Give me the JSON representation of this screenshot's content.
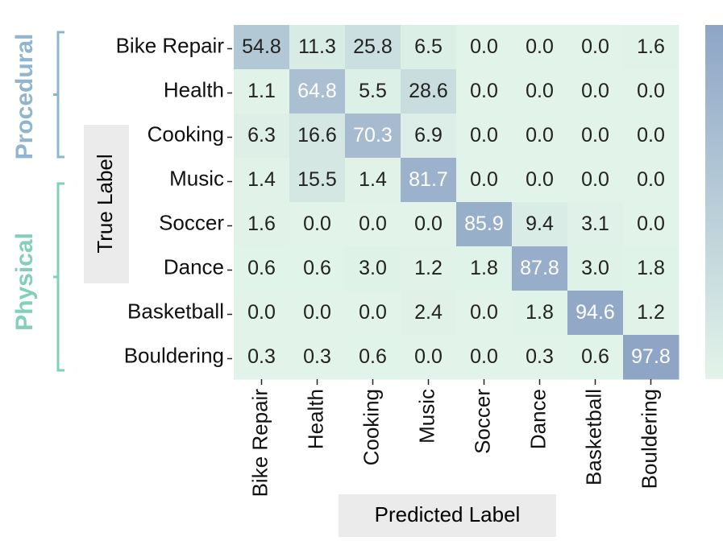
{
  "chart_data": {
    "type": "heatmap",
    "x_categories": [
      "Bike Repair",
      "Health",
      "Cooking",
      "Music",
      "Soccer",
      "Dance",
      "Basketball",
      "Bouldering"
    ],
    "y_categories": [
      "Bike Repair",
      "Health",
      "Cooking",
      "Music",
      "Soccer",
      "Dance",
      "Basketball",
      "Bouldering"
    ],
    "values": [
      [
        54.8,
        11.3,
        25.8,
        6.5,
        0.0,
        0.0,
        0.0,
        1.6
      ],
      [
        1.1,
        64.8,
        5.5,
        28.6,
        0.0,
        0.0,
        0.0,
        0.0
      ],
      [
        6.3,
        16.6,
        70.3,
        6.9,
        0.0,
        0.0,
        0.0,
        0.0
      ],
      [
        1.4,
        15.5,
        1.4,
        81.7,
        0.0,
        0.0,
        0.0,
        0.0
      ],
      [
        1.6,
        0.0,
        0.0,
        0.0,
        85.9,
        9.4,
        3.1,
        0.0
      ],
      [
        0.6,
        0.6,
        3.0,
        1.2,
        1.8,
        87.8,
        3.0,
        1.8
      ],
      [
        0.0,
        0.0,
        0.0,
        2.4,
        0.0,
        1.8,
        94.6,
        1.2
      ],
      [
        0.3,
        0.3,
        0.6,
        0.0,
        0.0,
        0.3,
        0.6,
        97.8
      ]
    ],
    "value_labels": [
      [
        "54.8",
        "11.3",
        "25.8",
        "6.5",
        "0.0",
        "0.0",
        "0.0",
        "1.6"
      ],
      [
        "1.1",
        "64.8",
        "5.5",
        "28.6",
        "0.0",
        "0.0",
        "0.0",
        "0.0"
      ],
      [
        "6.3",
        "16.6",
        "70.3",
        "6.9",
        "0.0",
        "0.0",
        "0.0",
        "0.0"
      ],
      [
        "1.4",
        "15.5",
        "1.4",
        "81.7",
        "0.0",
        "0.0",
        "0.0",
        "0.0"
      ],
      [
        "1.6",
        "0.0",
        "0.0",
        "0.0",
        "85.9",
        "9.4",
        "3.1",
        "0.0"
      ],
      [
        "0.6",
        "0.6",
        "3.0",
        "1.2",
        "1.8",
        "87.8",
        "3.0",
        "1.8"
      ],
      [
        "0.0",
        "0.0",
        "0.0",
        "2.4",
        "0.0",
        "1.8",
        "94.6",
        "1.2"
      ],
      [
        "0.3",
        "0.3",
        "0.6",
        "0.0",
        "0.0",
        "0.3",
        "0.6",
        "97.8"
      ]
    ],
    "xlabel": "Predicted Label",
    "ylabel": "True Label",
    "groups": [
      {
        "label": "Procedural",
        "color": "#8fb5cf"
      },
      {
        "label": "Physical",
        "color": "#82d0b9"
      }
    ],
    "cmap": [
      "#e2f4e9",
      "#8ea5c6"
    ]
  }
}
